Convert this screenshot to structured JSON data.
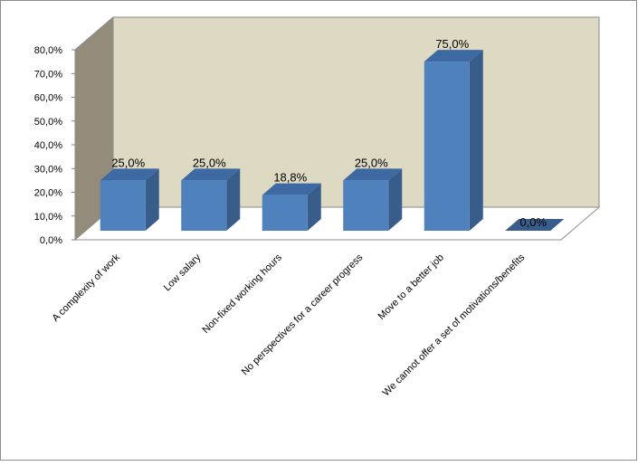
{
  "chart_data": {
    "type": "bar",
    "categories": [
      "A complexity of work",
      "Low salary",
      "Non-fixed working hours",
      "No perspectives for a career progress",
      "Move to a better job",
      "We cannot offer a set of motivations/benefits"
    ],
    "values": [
      25.0,
      25.0,
      18.8,
      25.0,
      75.0,
      0.0
    ],
    "data_labels": [
      "25,0%",
      "25,0%",
      "18,8%",
      "25,0%",
      "75,0%",
      "0,0%"
    ],
    "y_ticks": [
      0,
      10,
      20,
      30,
      40,
      50,
      60,
      70,
      80
    ],
    "y_tick_labels": [
      "0,0%",
      "10,0%",
      "20,0%",
      "30,0%",
      "40,0%",
      "50,0%",
      "60,0%",
      "70,0%",
      "80,0%"
    ],
    "ylim": [
      0,
      80
    ],
    "title": "",
    "xlabel": "",
    "ylabel": "",
    "grid": false,
    "legend": "none",
    "style": "3d-column",
    "colors": {
      "bar_front": "#4F81BD",
      "bar_side": "#385D8A",
      "bar_top": "#3E6AA3",
      "back_wall": "#DDD9C3",
      "side_wall": "#938C7A",
      "floor": "#FFFFFF",
      "border": "#8C8C8C"
    }
  }
}
